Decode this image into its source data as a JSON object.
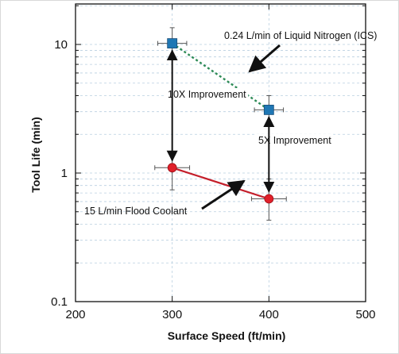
{
  "chart_data": {
    "type": "scatter",
    "xlabel": "Surface Speed (ft/min)",
    "ylabel": "Tool Life (min)",
    "x_scale": "linear",
    "y_scale": "log",
    "xlim": [
      200,
      500
    ],
    "ylim": [
      0.1,
      20
    ],
    "x_ticks": [
      "200",
      "300",
      "400",
      "500"
    ],
    "y_ticks": [
      "0.1",
      "1",
      "10"
    ],
    "grid": true,
    "series": [
      {
        "name": "0.24 L/min of Liquid Nitrogen (ICS)",
        "color": "#1f77b4",
        "marker": "square",
        "line_style": "dotted",
        "line_color": "#2e8b57",
        "points": [
          {
            "x": 300,
            "y": 10.2,
            "y_err_low": 7.8,
            "y_err_high": 13.5,
            "x_err": 15
          },
          {
            "x": 400,
            "y": 3.1,
            "y_err_low": 2.4,
            "y_err_high": 4.0,
            "x_err": 15
          }
        ]
      },
      {
        "name": "15 L/min Flood Coolant",
        "color": "#e0202a",
        "marker": "circle",
        "line_style": "solid",
        "line_color": "#c41e2a",
        "points": [
          {
            "x": 300,
            "y": 1.1,
            "y_err_low": 0.74,
            "y_err_high": 1.45,
            "x_err": 18
          },
          {
            "x": 400,
            "y": 0.63,
            "y_err_low": 0.43,
            "y_err_high": 0.9,
            "x_err": 18
          }
        ]
      }
    ],
    "annotations": [
      {
        "text": "0.24 L/min of Liquid Nitrogen (ICS)"
      },
      {
        "text": "10X Improvement"
      },
      {
        "text": "5X Improvement"
      },
      {
        "text": "15 L/min Flood Coolant"
      }
    ]
  }
}
